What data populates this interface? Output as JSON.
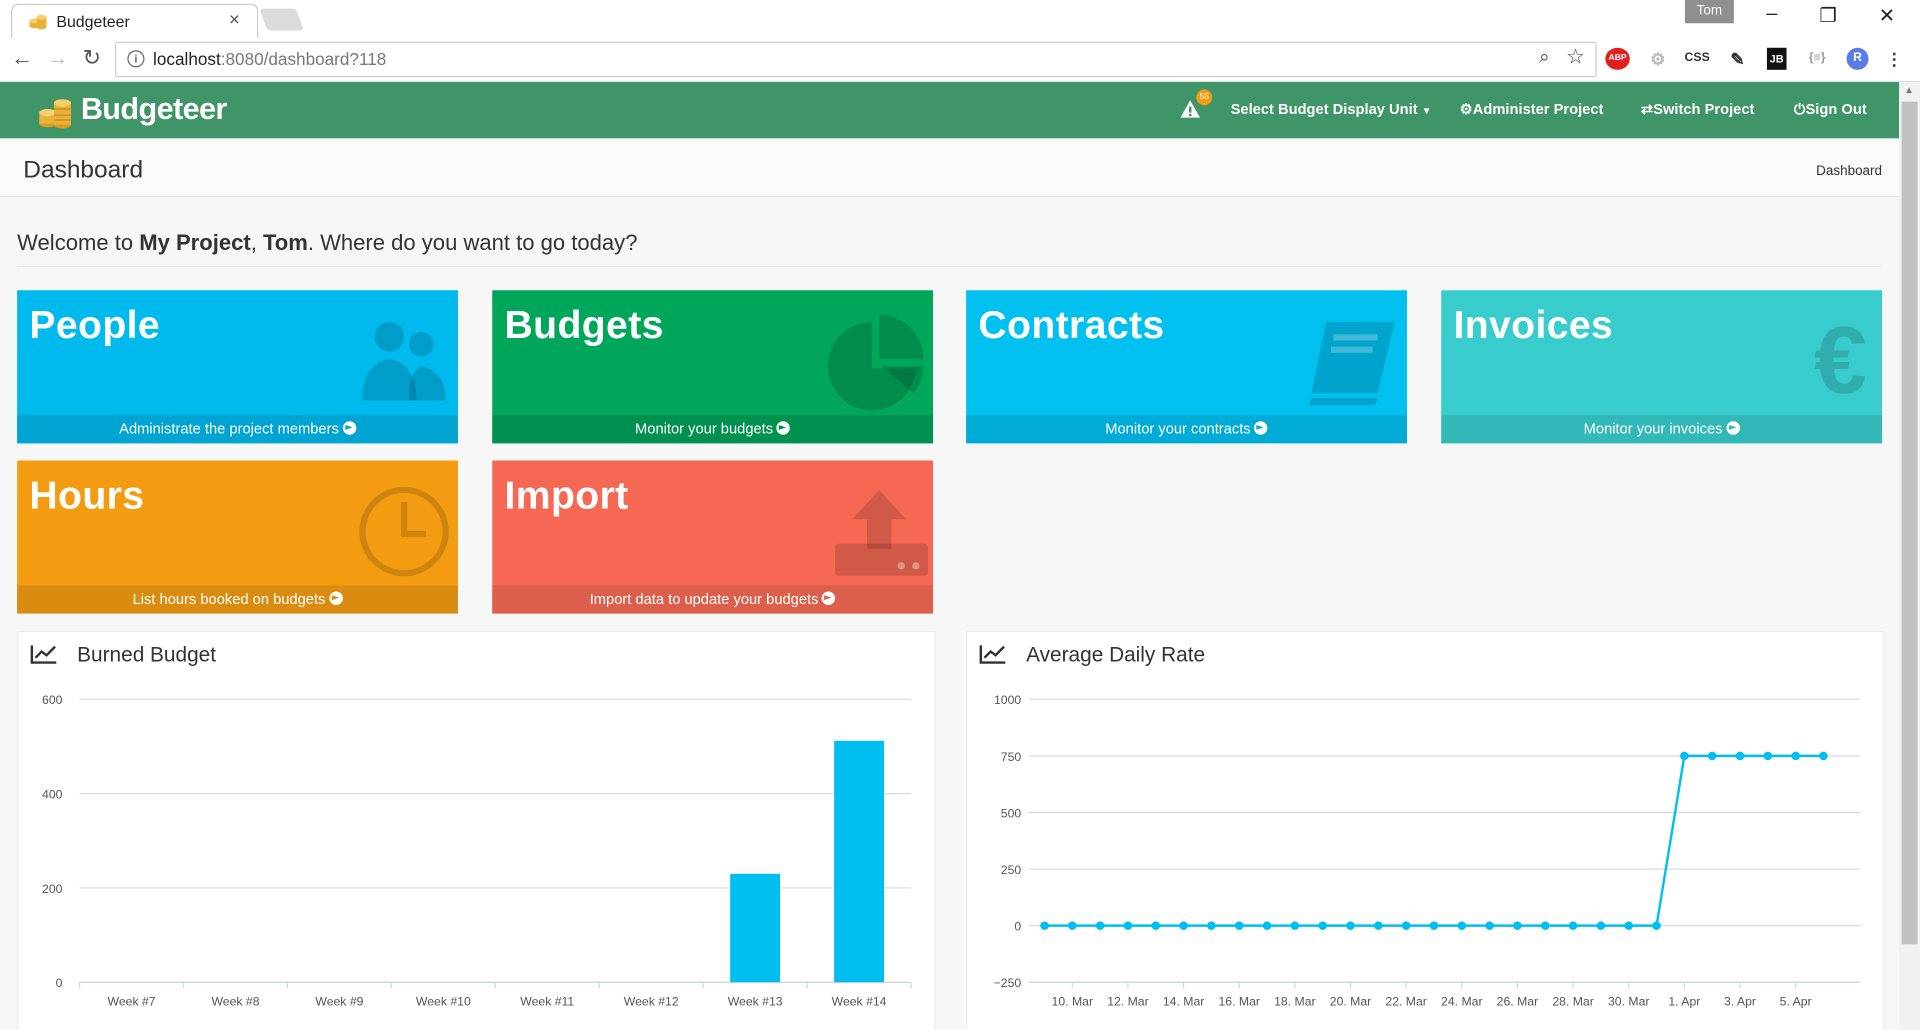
{
  "browser": {
    "tab_title": "Budgeteer",
    "tab_close": "×",
    "user": "Tom",
    "url_host": "localhost",
    "url_rest": ":8080/dashboard?118",
    "extensions": [
      "ABP",
      "CSS",
      "JB",
      "{≡}",
      "R"
    ]
  },
  "app": {
    "brand": "Budgeteer",
    "warning_count": "55",
    "nav": {
      "display_unit": "Select Budget Display Unit",
      "administer": "Administer Project",
      "switch": "Switch Project",
      "signout": "Sign Out"
    }
  },
  "page": {
    "title": "Dashboard",
    "breadcrumb": "Dashboard",
    "welcome_prefix": "Welcome to ",
    "project": "My Project",
    "comma": ", ",
    "user": "Tom",
    "welcome_suffix": ". Where do you want to go today?"
  },
  "tiles": [
    {
      "title": "People",
      "footer": "Administrate the project members",
      "color": "#00b9ed",
      "footer_color": "#00a4d3",
      "icon": "users-icon"
    },
    {
      "title": "Budgets",
      "footer": "Monitor your budgets",
      "color": "#00a65a",
      "footer_color": "#009150",
      "icon": "pie-chart-icon"
    },
    {
      "title": "Contracts",
      "footer": "Monitor your contracts",
      "color": "#00c0ef",
      "footer_color": "#00acd6",
      "icon": "book-icon"
    },
    {
      "title": "Invoices",
      "footer": "Monitor your invoices",
      "color": "#39cccc",
      "footer_color": "#33b8b8",
      "icon": "euro-icon"
    },
    {
      "title": "Hours",
      "footer": "List hours booked on budgets",
      "color": "#f39c12",
      "footer_color": "#da8c10",
      "icon": "clock-icon"
    },
    {
      "title": "Import",
      "footer": "Import data to update your budgets",
      "color": "#f56954",
      "footer_color": "#dc5f4c",
      "icon": "upload-icon"
    }
  ],
  "chart_data": [
    {
      "type": "bar",
      "title": "Burned Budget",
      "categories": [
        "Week #7",
        "Week #8",
        "Week #9",
        "Week #10",
        "Week #11",
        "Week #12",
        "Week #13",
        "Week #14"
      ],
      "values": [
        0,
        0,
        0,
        0,
        0,
        0,
        230,
        512
      ],
      "ylim": [
        0,
        600
      ],
      "yticks": [
        0,
        200,
        400,
        600
      ],
      "grid": true,
      "color": "#00bff0"
    },
    {
      "type": "line",
      "title": "Average Daily Rate",
      "x": [
        "9. Mar",
        "10. Mar",
        "11. Mar",
        "12. Mar",
        "13. Mar",
        "14. Mar",
        "15. Mar",
        "16. Mar",
        "17. Mar",
        "18. Mar",
        "19. Mar",
        "20. Mar",
        "21. Mar",
        "22. Mar",
        "23. Mar",
        "24. Mar",
        "25. Mar",
        "26. Mar",
        "27. Mar",
        "28. Mar",
        "29. Mar",
        "30. Mar",
        "31. Mar",
        "1. Apr",
        "2. Apr",
        "3. Apr",
        "4. Apr",
        "5. Apr",
        "6. Apr"
      ],
      "values": [
        0,
        0,
        0,
        0,
        0,
        0,
        0,
        0,
        0,
        0,
        0,
        0,
        0,
        0,
        0,
        0,
        0,
        0,
        0,
        0,
        0,
        0,
        0,
        750,
        750,
        750,
        750,
        750,
        750
      ],
      "xtick_labels": [
        "10. Mar",
        "12. Mar",
        "14. Mar",
        "16. Mar",
        "18. Mar",
        "20. Mar",
        "22. Mar",
        "24. Mar",
        "26. Mar",
        "28. Mar",
        "30. Mar",
        "1. Apr",
        "3. Apr",
        "5. Apr"
      ],
      "ylim": [
        -250,
        1000
      ],
      "yticks": [
        -250,
        0,
        250,
        500,
        750,
        1000
      ],
      "grid": true,
      "color": "#00bff0"
    }
  ]
}
